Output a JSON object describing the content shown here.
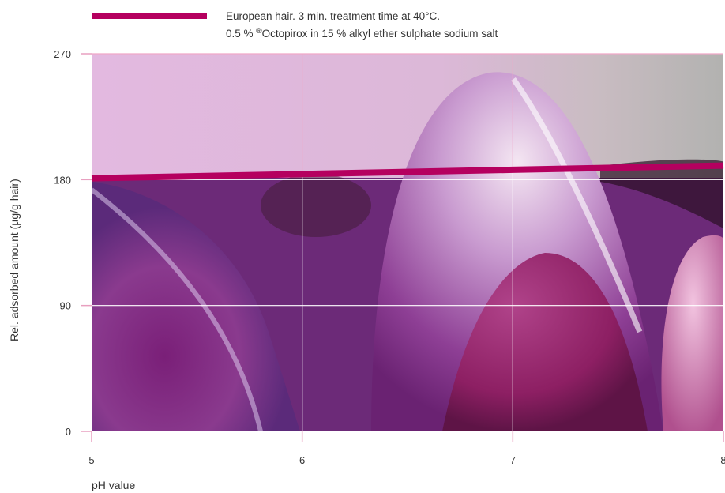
{
  "colors": {
    "series_line": "#b5005f",
    "gridline_upper": "#f0a8c8",
    "gridline_lower": "#ffffff",
    "axis_tick": "#e8a0c0"
  },
  "legend": {
    "line1": "European hair. 3 min. treatment time at 40°C.",
    "line2_prefix": "0.5 % ",
    "line2_sup": "®",
    "line2_suffix": "Octopirox in 15 % alkyl ether sulphate sodium salt"
  },
  "chart_data": {
    "type": "line",
    "xlabel": "pH value",
    "ylabel": "Rel. adsorbed amount (µg/g hair)",
    "xlim": [
      5,
      8
    ],
    "ylim": [
      0,
      270
    ],
    "x_ticks": [
      5,
      6,
      7,
      8
    ],
    "x_tick_labels": [
      "5",
      "6",
      "7",
      "8"
    ],
    "y_ticks": [
      0,
      90,
      180,
      270
    ],
    "y_tick_labels": [
      "0",
      "90",
      "180",
      "270"
    ],
    "grid": true,
    "legend_position": "top",
    "background": "photographic image (purple/pink flower)",
    "series": [
      {
        "name": "European hair. 3 min. treatment time at 40°C. 0.5 % ®Octopirox in 15 % alkyl ether sulphate sodium salt",
        "x": [
          5,
          6,
          7,
          8
        ],
        "values": [
          181,
          184,
          187,
          190
        ]
      }
    ]
  }
}
